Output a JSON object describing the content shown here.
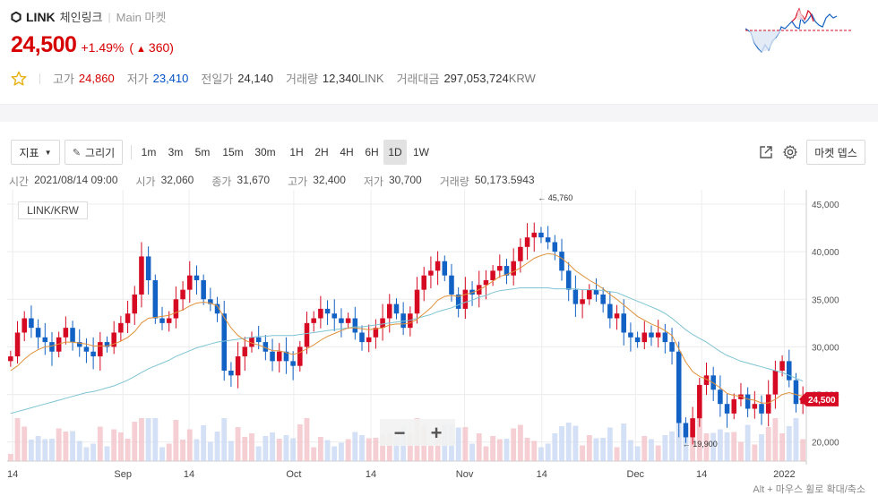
{
  "header": {
    "symbol": "LINK",
    "korean_name": "체인링크",
    "market": "Main 마켓",
    "price": "24,500",
    "change_pct": "+1.49%",
    "change_amt": "360",
    "stats": [
      {
        "label": "고가",
        "value": "24,860",
        "tone": "red"
      },
      {
        "label": "저가",
        "value": "23,410",
        "tone": "blue"
      },
      {
        "label": "전일가",
        "value": "24,140",
        "tone": ""
      },
      {
        "label": "거래량",
        "value": "12,340",
        "unit": "LINK",
        "tone": ""
      },
      {
        "label": "거래대금",
        "value": "297,053,724",
        "unit": "KRW",
        "tone": ""
      }
    ]
  },
  "toolbar": {
    "indicator_label": "지표",
    "draw_label": "그리기",
    "intervals": [
      "1m",
      "3m",
      "5m",
      "15m",
      "30m",
      "1H",
      "2H",
      "4H",
      "6H",
      "1D",
      "1W"
    ],
    "active_interval": "1D",
    "depth_label": "마켓 뎁스"
  },
  "ohlc": {
    "time_label": "시간",
    "time": "2021/08/14 09:00",
    "open_label": "시가",
    "open": "32,060",
    "close_label": "종가",
    "close": "31,670",
    "high_label": "고가",
    "high": "32,400",
    "low_label": "저가",
    "low": "30,700",
    "volume_label": "거래량",
    "volume": "50,173.5943"
  },
  "pair": "LINK/KRW",
  "hint": "Alt + 마우스 휠로 확대/축소",
  "zoom_out": "−",
  "zoom_in": "+",
  "colors": {
    "up": "#d60a22",
    "down": "#1261c4",
    "ma_short": "#e0913a",
    "ma_long": "#7ec4d3"
  },
  "chart_data": {
    "type": "candlestick",
    "interval": "1D",
    "x_tick_labels": [
      "14",
      "Sep",
      "14",
      "Oct",
      "14",
      "Nov",
      "14",
      "Dec",
      "14",
      "2022"
    ],
    "y_tick_labels": [
      "20,000",
      "25,000",
      "30,000",
      "35,000",
      "40,000",
      "45,000"
    ],
    "ylim": [
      18000,
      46500
    ],
    "current_price_label": "24,500",
    "max_label": "45,760",
    "min_label": "19,900",
    "close_series": [
      29000,
      31500,
      33000,
      32000,
      31000,
      30500,
      29500,
      31000,
      32000,
      30500,
      30000,
      29500,
      29000,
      30500,
      30000,
      31500,
      32500,
      33500,
      35500,
      39500,
      37000,
      33000,
      32500,
      33000,
      35000,
      36000,
      37500,
      37000,
      35000,
      34500,
      33500,
      27500,
      27000,
      29000,
      30000,
      31000,
      30500,
      29500,
      28500,
      29500,
      28500,
      28000,
      30000,
      32500,
      33000,
      34000,
      33500,
      33000,
      32500,
      33000,
      31500,
      30500,
      31000,
      32000,
      33000,
      34500,
      33500,
      32000,
      33500,
      36000,
      37500,
      38000,
      39000,
      37500,
      35500,
      34000,
      36000,
      35500,
      36500,
      37000,
      38000,
      38500,
      37500,
      39000,
      40500,
      41500,
      42000,
      41500,
      41000,
      40000,
      38000,
      36000,
      34500,
      35000,
      36000,
      35500,
      34500,
      33000,
      33500,
      31500,
      31000,
      30500,
      31500,
      31000,
      31500,
      30500,
      29500,
      22000,
      20500,
      22500,
      26000,
      27000,
      25500,
      24000,
      23000,
      24500,
      25000,
      23500,
      24000,
      23000,
      25000,
      27500,
      28500,
      26500,
      24000,
      24500
    ],
    "ma_short_series": [
      27500,
      28000,
      28700,
      29300,
      29700,
      30000,
      30100,
      30300,
      30500,
      30500,
      30400,
      30300,
      30100,
      30100,
      30100,
      30300,
      30600,
      31000,
      31600,
      32500,
      33000,
      33100,
      33200,
      33300,
      33600,
      33900,
      34300,
      34600,
      34700,
      34600,
      34300,
      33100,
      32000,
      31200,
      30700,
      30400,
      30200,
      29900,
      29600,
      29600,
      29400,
      29200,
      29400,
      29800,
      30200,
      30700,
      31100,
      31400,
      31700,
      32000,
      32000,
      31900,
      31800,
      31900,
      32000,
      32300,
      32400,
      32400,
      32500,
      32900,
      33500,
      34100,
      34900,
      35300,
      35400,
      35300,
      35500,
      35700,
      36000,
      36400,
      36900,
      37400,
      37600,
      37900,
      38300,
      38800,
      39300,
      39600,
      39800,
      39700,
      39300,
      38700,
      38000,
      37500,
      37000,
      36600,
      36100,
      35500,
      35000,
      34400,
      33800,
      33200,
      32800,
      32400,
      32100,
      31700,
      31200,
      29800,
      28400,
      27400,
      26900,
      26600,
      26200,
      25700,
      25100,
      24900,
      24800,
      24500,
      24400,
      24100,
      24100,
      24500,
      25000,
      25200,
      25000,
      24800
    ],
    "ma_long_series": [
      23000,
      23200,
      23400,
      23600,
      23800,
      24000,
      24200,
      24400,
      24600,
      24800,
      25000,
      25200,
      25300,
      25500,
      25700,
      25900,
      26200,
      26500,
      26900,
      27300,
      27700,
      28000,
      28300,
      28600,
      29000,
      29300,
      29600,
      29900,
      30100,
      30300,
      30500,
      30600,
      30700,
      30800,
      30900,
      31000,
      31100,
      31100,
      31200,
      31200,
      31200,
      31200,
      31300,
      31400,
      31500,
      31600,
      31700,
      31800,
      31900,
      32000,
      32100,
      32100,
      32200,
      32300,
      32400,
      32500,
      32600,
      32700,
      32800,
      33000,
      33200,
      33400,
      33700,
      33900,
      34100,
      34400,
      34700,
      34900,
      35200,
      35400,
      35700,
      35900,
      36000,
      36100,
      36200,
      36200,
      36200,
      36200,
      36200,
      36100,
      36100,
      36100,
      36100,
      36000,
      36000,
      36000,
      35900,
      35800,
      35700,
      35400,
      35100,
      34800,
      34500,
      34200,
      33900,
      33500,
      33000,
      32400,
      31800,
      31300,
      30900,
      30500,
      30000,
      29500,
      29100,
      28800,
      28500,
      28300,
      28100,
      27900,
      27700,
      27500,
      27300,
      27000,
      26700,
      26400
    ]
  }
}
